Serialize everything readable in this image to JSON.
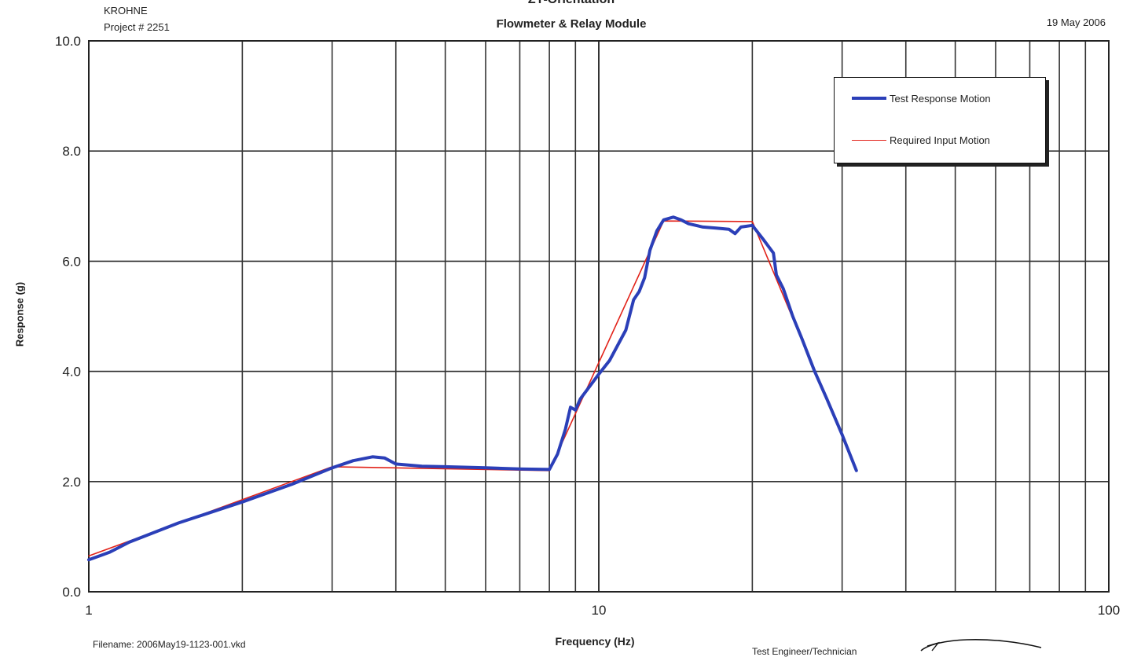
{
  "header": {
    "company": "KROHNE",
    "project": "Project # 2251",
    "title": "ZY-Orientation",
    "subtitle": "Flowmeter & Relay Module",
    "date": "19 May 2006"
  },
  "footer": {
    "filename": "Filename: 2006May19-1123-001.vkd",
    "engineer_label": "Test Engineer/Technician"
  },
  "colors": {
    "test_response": "#2b3fb8",
    "required_input": "#e2231a"
  },
  "chart_data": {
    "type": "line",
    "title": "ZY-Orientation",
    "subtitle": "Flowmeter & Relay Module",
    "xlabel": "Frequency (Hz)",
    "ylabel": "Response (g)",
    "xscale": "log",
    "xlim": [
      1,
      100
    ],
    "ylim": [
      0,
      10
    ],
    "x_tick_labels": [
      "1",
      "10",
      "100"
    ],
    "y_tick_labels": [
      "0.0",
      "2.0",
      "4.0",
      "6.0",
      "8.0",
      "10.0"
    ],
    "grid": true,
    "legend_position": "top-right",
    "series": [
      {
        "name": "Test Response Motion",
        "color_key": "test_response",
        "points": [
          [
            1.0,
            0.58
          ],
          [
            1.1,
            0.72
          ],
          [
            1.2,
            0.9
          ],
          [
            1.5,
            1.25
          ],
          [
            2.0,
            1.63
          ],
          [
            2.5,
            1.95
          ],
          [
            3.0,
            2.25
          ],
          [
            3.3,
            2.38
          ],
          [
            3.6,
            2.45
          ],
          [
            3.8,
            2.43
          ],
          [
            4.0,
            2.32
          ],
          [
            4.5,
            2.28
          ],
          [
            5.0,
            2.27
          ],
          [
            6.0,
            2.25
          ],
          [
            7.0,
            2.23
          ],
          [
            8.0,
            2.22
          ],
          [
            8.3,
            2.5
          ],
          [
            8.6,
            2.95
          ],
          [
            8.8,
            3.35
          ],
          [
            9.0,
            3.3
          ],
          [
            9.2,
            3.5
          ],
          [
            10.0,
            3.95
          ],
          [
            10.5,
            4.2
          ],
          [
            11.0,
            4.55
          ],
          [
            11.3,
            4.75
          ],
          [
            11.7,
            5.3
          ],
          [
            12.0,
            5.45
          ],
          [
            12.3,
            5.7
          ],
          [
            12.6,
            6.2
          ],
          [
            13.0,
            6.55
          ],
          [
            13.4,
            6.75
          ],
          [
            14.0,
            6.8
          ],
          [
            14.5,
            6.75
          ],
          [
            15.0,
            6.68
          ],
          [
            16.0,
            6.62
          ],
          [
            17.0,
            6.6
          ],
          [
            18.0,
            6.58
          ],
          [
            18.5,
            6.5
          ],
          [
            19.0,
            6.62
          ],
          [
            20.0,
            6.65
          ],
          [
            21.0,
            6.4
          ],
          [
            22.0,
            6.15
          ],
          [
            22.3,
            5.75
          ],
          [
            23.0,
            5.5
          ],
          [
            24.0,
            5.0
          ],
          [
            25.0,
            4.6
          ],
          [
            26.5,
            4.0
          ],
          [
            28.0,
            3.5
          ],
          [
            30.0,
            2.85
          ],
          [
            32.0,
            2.2
          ]
        ]
      },
      {
        "name": "Required Input Motion",
        "color_key": "required_input",
        "points": [
          [
            1.0,
            0.65
          ],
          [
            3.0,
            2.27
          ],
          [
            8.0,
            2.2
          ],
          [
            13.4,
            6.73
          ],
          [
            20.0,
            6.72
          ],
          [
            32.0,
            2.2
          ]
        ]
      }
    ]
  }
}
